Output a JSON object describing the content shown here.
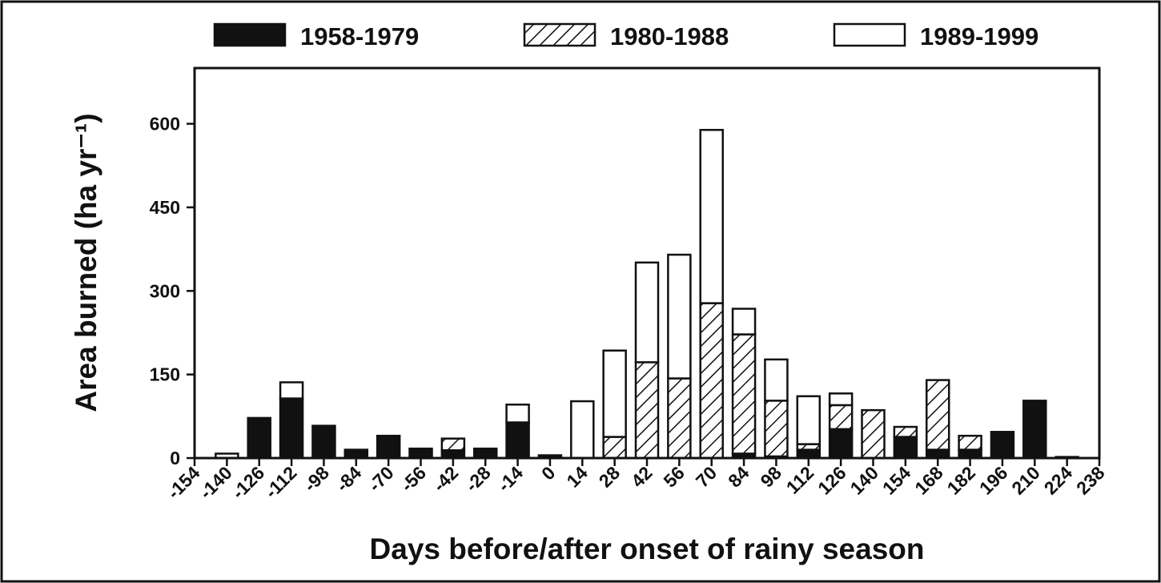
{
  "chart_data": {
    "type": "stacked-bar",
    "x": [
      -140,
      -126,
      -112,
      -98,
      -84,
      -70,
      -56,
      -42,
      -28,
      -14,
      0,
      14,
      28,
      42,
      56,
      70,
      84,
      98,
      112,
      126,
      140,
      154,
      168,
      182,
      196,
      210,
      224
    ],
    "series": [
      {
        "name": "1958-1979",
        "color": "#111111",
        "values": [
          0,
          72,
          107,
          58,
          15,
          40,
          17,
          14,
          17,
          64,
          5,
          0,
          0,
          0,
          0,
          0,
          8,
          3,
          15,
          52,
          0,
          38,
          15,
          15,
          47,
          103,
          2
        ]
      },
      {
        "name": "1980-1988",
        "color": "#111111",
        "pattern": "hatch",
        "values": [
          0,
          0,
          0,
          0,
          0,
          0,
          0,
          21,
          0,
          0,
          0,
          0,
          38,
          172,
          143,
          278,
          214,
          100,
          10,
          43,
          86,
          18,
          125,
          25,
          0,
          0,
          0
        ]
      },
      {
        "name": "1989-1999",
        "color": "#ffffff",
        "values": [
          8,
          0,
          29,
          0,
          0,
          0,
          0,
          0,
          0,
          32,
          0,
          102,
          155,
          179,
          222,
          311,
          46,
          74,
          86,
          21,
          0,
          0,
          0,
          0,
          0,
          0,
          0
        ]
      }
    ],
    "xlabel": "Days before/after onset of rainy season",
    "ylabel": "Area burned (ha yr⁻¹)",
    "xlim": [
      -154,
      238
    ],
    "xticks": [
      -154,
      -140,
      -126,
      -112,
      -98,
      -84,
      -70,
      -56,
      -42,
      -28,
      -14,
      0,
      14,
      28,
      42,
      56,
      70,
      84,
      98,
      112,
      126,
      140,
      154,
      168,
      182,
      196,
      210,
      224,
      238
    ],
    "ylim": [
      0,
      700
    ],
    "yticks": [
      0,
      150,
      300,
      450,
      600
    ],
    "legend": "top"
  }
}
